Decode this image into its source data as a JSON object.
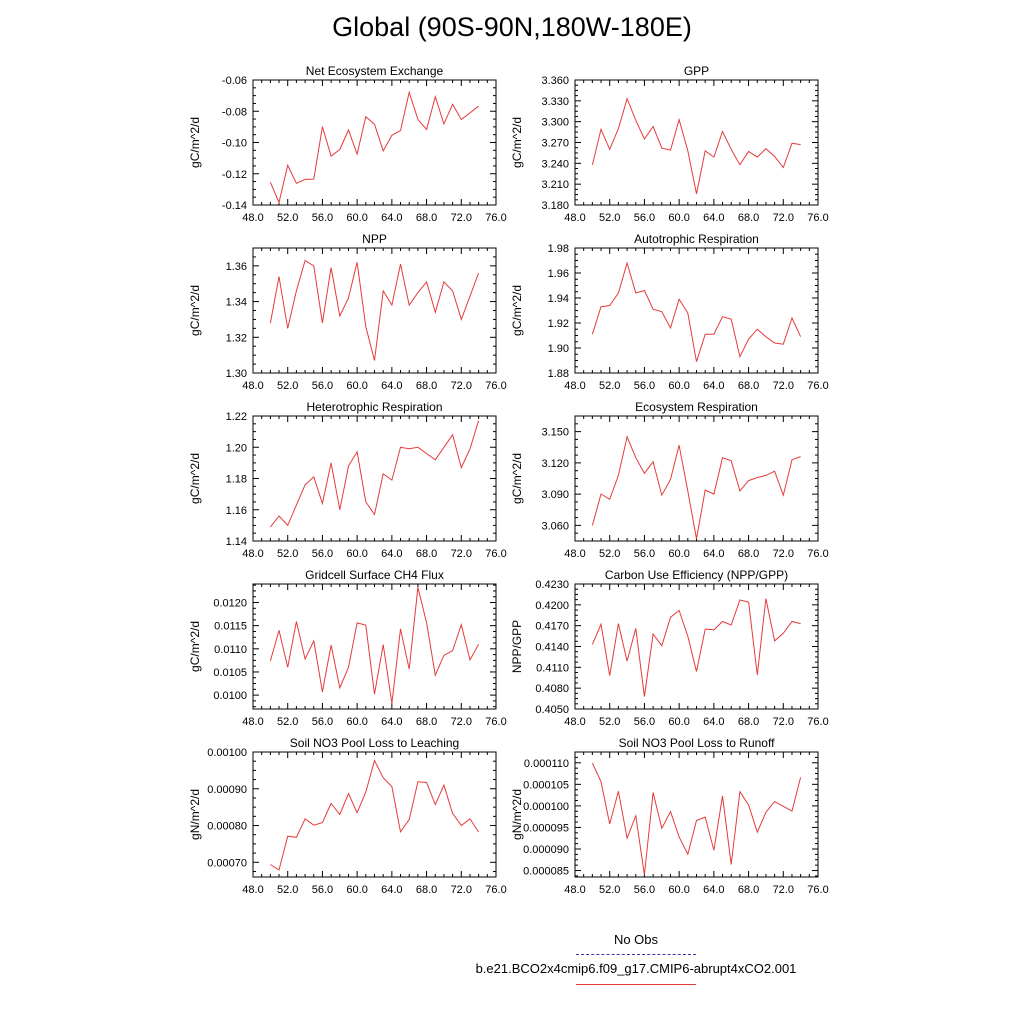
{
  "figure": {
    "title": "Global (90S-90N,180W-180E)",
    "legend": {
      "obs_label": "No Obs",
      "case_label": "b.e21.BCO2x4cmip6.f09_g17.CMIP6-abrupt4xCO2.001",
      "obs_color": "#3333aa",
      "case_color": "#e53b3b"
    }
  },
  "chart_data": [
    {
      "type": "line",
      "title": "Net Ecosystem Exchange",
      "ylabel": "gC/m^2/d",
      "xlim": [
        48,
        76
      ],
      "ylim": [
        -0.14,
        -0.06
      ],
      "xticks": [
        "48.0",
        "52.0",
        "56.0",
        "60.0",
        "64.0",
        "68.0",
        "72.0",
        "76.0"
      ],
      "yticks": [
        "-0.14",
        "-0.12",
        "-0.10",
        "-0.08",
        "-0.06"
      ],
      "ytick_values": [
        -0.14,
        -0.12,
        -0.1,
        -0.08,
        -0.06
      ],
      "x": [
        50,
        51,
        52,
        53,
        54,
        55,
        56,
        57,
        58,
        59,
        60,
        61,
        62,
        63,
        64,
        65,
        66,
        67,
        68,
        69,
        70,
        71,
        72,
        73,
        74
      ],
      "series": [
        {
          "name": "b.e21.BCO2x4cmip6.f09_g17.CMIP6-abrupt4xCO2.001",
          "values": [
            -0.1255,
            -0.1384,
            -0.1146,
            -0.1262,
            -0.1236,
            -0.1234,
            -0.0899,
            -0.1088,
            -0.1045,
            -0.092,
            -0.1074,
            -0.0835,
            -0.0883,
            -0.1054,
            -0.0954,
            -0.0924,
            -0.0679,
            -0.0852,
            -0.0917,
            -0.0707,
            -0.0881,
            -0.0756,
            -0.0853,
            -0.081,
            -0.0768
          ]
        }
      ]
    },
    {
      "type": "line",
      "title": "GPP",
      "ylabel": "gC/m^2/d",
      "xlim": [
        48,
        76
      ],
      "ylim": [
        3.18,
        3.36
      ],
      "xticks": [
        "48.0",
        "52.0",
        "56.0",
        "60.0",
        "64.0",
        "68.0",
        "72.0",
        "76.0"
      ],
      "yticks": [
        "3.180",
        "3.210",
        "3.240",
        "3.270",
        "3.300",
        "3.330",
        "3.360"
      ],
      "ytick_values": [
        3.18,
        3.21,
        3.24,
        3.27,
        3.3,
        3.33,
        3.36
      ],
      "x": [
        50,
        51,
        52,
        53,
        54,
        55,
        56,
        57,
        58,
        59,
        60,
        61,
        62,
        63,
        64,
        65,
        66,
        67,
        68,
        69,
        70,
        71,
        72,
        73,
        74
      ],
      "series": [
        {
          "name": "b.e21.BCO2x4cmip6.f09_g17.CMIP6-abrupt4xCO2.001",
          "values": [
            3.238,
            3.289,
            3.26,
            3.29,
            3.333,
            3.302,
            3.275,
            3.293,
            3.262,
            3.259,
            3.303,
            3.258,
            3.196,
            3.258,
            3.249,
            3.286,
            3.26,
            3.238,
            3.257,
            3.249,
            3.261,
            3.25,
            3.234,
            3.269,
            3.267
          ]
        }
      ]
    },
    {
      "type": "line",
      "title": "NPP",
      "ylabel": "gC/m^2/d",
      "xlim": [
        48,
        76
      ],
      "ylim": [
        1.3,
        1.37
      ],
      "xticks": [
        "48.0",
        "52.0",
        "56.0",
        "60.0",
        "64.0",
        "68.0",
        "72.0",
        "76.0"
      ],
      "yticks": [
        "1.30",
        "1.32",
        "1.34",
        "1.36"
      ],
      "ytick_values": [
        1.3,
        1.32,
        1.34,
        1.36
      ],
      "x": [
        50,
        51,
        52,
        53,
        54,
        55,
        56,
        57,
        58,
        59,
        60,
        61,
        62,
        63,
        64,
        65,
        66,
        67,
        68,
        69,
        70,
        71,
        72,
        73,
        74
      ],
      "series": [
        {
          "name": "b.e21.BCO2x4cmip6.f09_g17.CMIP6-abrupt4xCO2.001",
          "values": [
            1.328,
            1.354,
            1.325,
            1.346,
            1.363,
            1.36,
            1.328,
            1.359,
            1.332,
            1.342,
            1.362,
            1.326,
            1.307,
            1.346,
            1.338,
            1.361,
            1.338,
            1.345,
            1.351,
            1.334,
            1.351,
            1.346,
            1.33,
            1.343,
            1.356
          ]
        }
      ]
    },
    {
      "type": "line",
      "title": "Autotrophic Respiration",
      "ylabel": "gC/m^2/d",
      "xlim": [
        48,
        76
      ],
      "ylim": [
        1.88,
        1.98
      ],
      "xticks": [
        "48.0",
        "52.0",
        "56.0",
        "60.0",
        "64.0",
        "68.0",
        "72.0",
        "76.0"
      ],
      "yticks": [
        "1.88",
        "1.90",
        "1.92",
        "1.94",
        "1.96",
        "1.98"
      ],
      "ytick_values": [
        1.88,
        1.9,
        1.92,
        1.94,
        1.96,
        1.98
      ],
      "x": [
        50,
        51,
        52,
        53,
        54,
        55,
        56,
        57,
        58,
        59,
        60,
        61,
        62,
        63,
        64,
        65,
        66,
        67,
        68,
        69,
        70,
        71,
        72,
        73,
        74
      ],
      "series": [
        {
          "name": "b.e21.BCO2x4cmip6.f09_g17.CMIP6-abrupt4xCO2.001",
          "values": [
            1.911,
            1.933,
            1.934,
            1.944,
            1.968,
            1.944,
            1.946,
            1.931,
            1.929,
            1.916,
            1.939,
            1.928,
            1.889,
            1.911,
            1.911,
            1.925,
            1.923,
            1.893,
            1.907,
            1.915,
            1.909,
            1.904,
            1.903,
            1.924,
            1.909
          ]
        }
      ]
    },
    {
      "type": "line",
      "title": "Heterotrophic Respiration",
      "ylabel": "gC/m^2/d",
      "xlim": [
        48,
        76
      ],
      "ylim": [
        1.14,
        1.22
      ],
      "xticks": [
        "48.0",
        "52.0",
        "56.0",
        "60.0",
        "64.0",
        "68.0",
        "72.0",
        "76.0"
      ],
      "yticks": [
        "1.14",
        "1.16",
        "1.18",
        "1.20",
        "1.22"
      ],
      "ytick_values": [
        1.14,
        1.16,
        1.18,
        1.2,
        1.22
      ],
      "x": [
        50,
        51,
        52,
        53,
        54,
        55,
        56,
        57,
        58,
        59,
        60,
        61,
        62,
        63,
        64,
        65,
        66,
        67,
        68,
        69,
        70,
        71,
        72,
        73,
        74
      ],
      "series": [
        {
          "name": "b.e21.BCO2x4cmip6.f09_g17.CMIP6-abrupt4xCO2.001",
          "values": [
            1.149,
            1.156,
            1.15,
            1.163,
            1.176,
            1.181,
            1.164,
            1.19,
            1.16,
            1.188,
            1.197,
            1.165,
            1.157,
            1.183,
            1.179,
            1.2,
            1.199,
            1.2,
            1.196,
            1.192,
            1.2,
            1.208,
            1.187,
            1.199,
            1.217
          ]
        }
      ]
    },
    {
      "type": "line",
      "title": "Ecosystem Respiration",
      "ylabel": "gC/m^2/d",
      "xlim": [
        48,
        76
      ],
      "ylim": [
        3.045,
        3.165
      ],
      "xticks": [
        "48.0",
        "52.0",
        "56.0",
        "60.0",
        "64.0",
        "68.0",
        "72.0",
        "76.0"
      ],
      "yticks": [
        "3.060",
        "3.090",
        "3.120",
        "3.150"
      ],
      "ytick_values": [
        3.06,
        3.09,
        3.12,
        3.15
      ],
      "x": [
        50,
        51,
        52,
        53,
        54,
        55,
        56,
        57,
        58,
        59,
        60,
        61,
        62,
        63,
        64,
        65,
        66,
        67,
        68,
        69,
        70,
        71,
        72,
        73,
        74
      ],
      "series": [
        {
          "name": "b.e21.BCO2x4cmip6.f09_g17.CMIP6-abrupt4xCO2.001",
          "values": [
            3.06,
            3.09,
            3.085,
            3.108,
            3.145,
            3.125,
            3.11,
            3.121,
            3.089,
            3.104,
            3.137,
            3.093,
            3.047,
            3.094,
            3.09,
            3.125,
            3.122,
            3.093,
            3.103,
            3.106,
            3.108,
            3.112,
            3.089,
            3.123,
            3.126
          ]
        }
      ]
    },
    {
      "type": "line",
      "title": "Gridcell Surface CH4 Flux",
      "ylabel": "gC/m^2/d",
      "xlim": [
        48,
        76
      ],
      "ylim": [
        0.0097,
        0.0124
      ],
      "xticks": [
        "48.0",
        "52.0",
        "56.0",
        "60.0",
        "64.0",
        "68.0",
        "72.0",
        "76.0"
      ],
      "yticks": [
        "0.0100",
        "0.0105",
        "0.0110",
        "0.0115",
        "0.0120"
      ],
      "ytick_values": [
        0.01,
        0.0105,
        0.011,
        0.0115,
        0.012
      ],
      "x": [
        50,
        51,
        52,
        53,
        54,
        55,
        56,
        57,
        58,
        59,
        60,
        61,
        62,
        63,
        64,
        65,
        66,
        67,
        68,
        69,
        70,
        71,
        72,
        73,
        74
      ],
      "series": [
        {
          "name": "b.e21.BCO2x4cmip6.f09_g17.CMIP6-abrupt4xCO2.001",
          "values": [
            0.01074,
            0.0114,
            0.0106,
            0.01159,
            0.01078,
            0.01117,
            0.01007,
            0.01108,
            0.01016,
            0.0106,
            0.01156,
            0.01151,
            0.01002,
            0.01109,
            0.00982,
            0.01143,
            0.01056,
            0.01233,
            0.01156,
            0.01043,
            0.01086,
            0.01096,
            0.01152,
            0.01076,
            0.0111
          ]
        }
      ]
    },
    {
      "type": "line",
      "title": "Carbon Use Efficiency (NPP/GPP)",
      "ylabel": "NPP/GPP",
      "xlim": [
        48,
        76
      ],
      "ylim": [
        0.405,
        0.423
      ],
      "xticks": [
        "48.0",
        "52.0",
        "56.0",
        "60.0",
        "64.0",
        "68.0",
        "72.0",
        "76.0"
      ],
      "yticks": [
        "0.4050",
        "0.4080",
        "0.4110",
        "0.4140",
        "0.4170",
        "0.4200",
        "0.4230"
      ],
      "ytick_values": [
        0.405,
        0.408,
        0.411,
        0.414,
        0.417,
        0.42,
        0.423
      ],
      "x": [
        50,
        51,
        52,
        53,
        54,
        55,
        56,
        57,
        58,
        59,
        60,
        61,
        62,
        63,
        64,
        65,
        66,
        67,
        68,
        69,
        70,
        71,
        72,
        73,
        74
      ],
      "series": [
        {
          "name": "b.e21.BCO2x4cmip6.f09_g17.CMIP6-abrupt4xCO2.001",
          "values": [
            0.4143,
            0.4172,
            0.4098,
            0.4173,
            0.4119,
            0.4166,
            0.4068,
            0.4158,
            0.4141,
            0.4182,
            0.4192,
            0.4155,
            0.4104,
            0.4165,
            0.4164,
            0.4176,
            0.4171,
            0.4207,
            0.4204,
            0.4099,
            0.4209,
            0.4148,
            0.4159,
            0.4176,
            0.4173
          ]
        }
      ]
    },
    {
      "type": "line",
      "title": "Soil NO3 Pool Loss to Leaching",
      "ylabel": "gN/m^2/d",
      "xlim": [
        48,
        76
      ],
      "ylim": [
        0.00066,
        0.001
      ],
      "xticks": [
        "48.0",
        "52.0",
        "56.0",
        "60.0",
        "64.0",
        "68.0",
        "72.0",
        "76.0"
      ],
      "yticks": [
        "0.00070",
        "0.00080",
        "0.00090",
        "0.00100"
      ],
      "ytick_values": [
        0.0007,
        0.0008,
        0.0009,
        0.001
      ],
      "x": [
        50,
        51,
        52,
        53,
        54,
        55,
        56,
        57,
        58,
        59,
        60,
        61,
        62,
        63,
        64,
        65,
        66,
        67,
        68,
        69,
        70,
        71,
        72,
        73,
        74
      ],
      "series": [
        {
          "name": "b.e21.BCO2x4cmip6.f09_g17.CMIP6-abrupt4xCO2.001",
          "values": [
            0.000694,
            0.000679,
            0.000771,
            0.000768,
            0.000818,
            0.000801,
            0.000808,
            0.00086,
            0.00083,
            0.000887,
            0.000835,
            0.000891,
            0.000977,
            0.00093,
            0.000906,
            0.000783,
            0.000816,
            0.000919,
            0.000917,
            0.000857,
            0.00091,
            0.000833,
            0.0008,
            0.000818,
            0.000782
          ]
        }
      ]
    },
    {
      "type": "line",
      "title": "Soil NO3 Pool Loss to Runoff",
      "ylabel": "gN/m^2/d",
      "xlim": [
        48,
        76
      ],
      "ylim": [
        8.35e-05,
        0.0001125
      ],
      "xticks": [
        "48.0",
        "52.0",
        "56.0",
        "60.0",
        "64.0",
        "68.0",
        "72.0",
        "76.0"
      ],
      "yticks": [
        "0.000085",
        "0.000090",
        "0.000095",
        "0.000100",
        "0.000105",
        "0.000110"
      ],
      "ytick_values": [
        8.5e-05,
        9e-05,
        9.5e-05,
        0.0001,
        0.000105,
        0.00011
      ],
      "x": [
        50,
        51,
        52,
        53,
        54,
        55,
        56,
        57,
        58,
        59,
        60,
        61,
        62,
        63,
        64,
        65,
        66,
        67,
        68,
        69,
        70,
        71,
        72,
        73,
        74
      ],
      "series": [
        {
          "name": "b.e21.BCO2x4cmip6.f09_g17.CMIP6-abrupt4xCO2.001",
          "values": [
            0.0001099,
            0.0001056,
            9.58e-05,
            0.0001034,
            9.25e-05,
            9.77e-05,
            8.4e-05,
            0.0001031,
            9.48e-05,
            9.87e-05,
            9.28e-05,
            8.88e-05,
            9.66e-05,
            9.74e-05,
            8.97e-05,
            0.0001023,
            8.64e-05,
            0.0001033,
            0.0001002,
            9.39e-05,
            9.85e-05,
            0.000101,
            9.99e-05,
            9.88e-05,
            0.0001066
          ]
        }
      ]
    }
  ]
}
